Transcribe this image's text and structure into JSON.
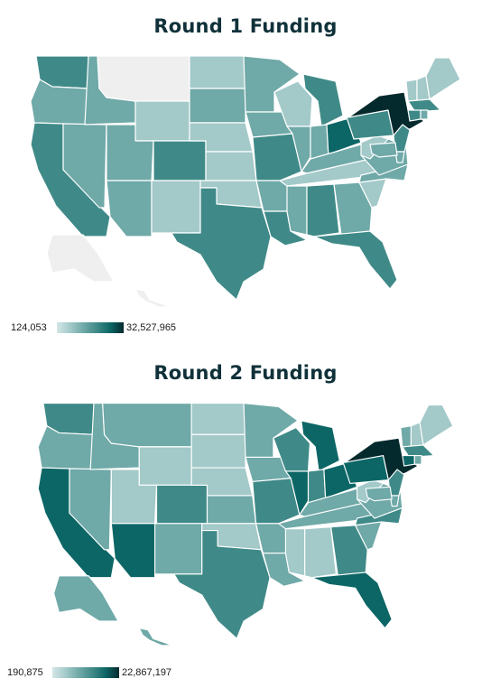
{
  "colors": {
    "scale": [
      "#d4e6e6",
      "#a3c9c9",
      "#6fa9a8",
      "#3f8a88",
      "#0d6666",
      "#052a2e"
    ],
    "no_data": "#efefef",
    "title": "#10313a"
  },
  "maps": [
    {
      "title": "Round 1 Funding",
      "legend": {
        "min": "124,053",
        "max": "32,527,965"
      },
      "levels": {
        "WA": 3,
        "OR": 2,
        "CA": 3,
        "NV": 2,
        "ID": 2,
        "MT": 0,
        "WY": 1,
        "UT": 2,
        "AZ": 2,
        "CO": 3,
        "NM": 1,
        "ND": 1,
        "SD": 2,
        "NE": 1,
        "KS": 1,
        "OK": 1,
        "TX": 3,
        "MN": 2,
        "IA": 2,
        "MO": 3,
        "AR": 2,
        "LA": 3,
        "WI": 1,
        "IL": 2,
        "MI": 3,
        "IN": 2,
        "OH": 4,
        "KY": 2,
        "TN": 1,
        "MS": 2,
        "AL": 3,
        "GA": 2,
        "FL": 3,
        "SC": 1,
        "NC": 2,
        "VA": 2,
        "WV": 1,
        "PA": 3,
        "NY": 5,
        "VT": 1,
        "NH": 1,
        "ME": 1,
        "MA": 3,
        "CT": 3,
        "RI": 2,
        "NJ": 3,
        "DE": 2,
        "MD": 2,
        "AK": 0,
        "HI": 0
      }
    },
    {
      "title": "Round 2 Funding",
      "legend": {
        "min": "190,875",
        "max": "22,867,197"
      },
      "levels": {
        "WA": 3,
        "OR": 2,
        "CA": 4,
        "NV": 2,
        "ID": 2,
        "MT": 2,
        "WY": 1,
        "UT": 1,
        "AZ": 4,
        "CO": 3,
        "NM": 2,
        "ND": 1,
        "SD": 1,
        "NE": 1,
        "KS": 2,
        "OK": 1,
        "TX": 3,
        "MN": 2,
        "IA": 2,
        "MO": 3,
        "AR": 2,
        "LA": 2,
        "WI": 3,
        "IL": 4,
        "MI": 4,
        "IN": 3,
        "OH": 4,
        "KY": 2,
        "TN": 2,
        "MS": 1,
        "AL": 1,
        "GA": 3,
        "FL": 4,
        "SC": 2,
        "NC": 3,
        "VA": 2,
        "WV": 1,
        "PA": 4,
        "NY": 5,
        "VT": 2,
        "NH": 1,
        "ME": 1,
        "MA": 3,
        "CT": 4,
        "RI": 2,
        "NJ": 3,
        "DE": 2,
        "MD": 2,
        "AK": 2,
        "HI": 2
      }
    }
  ]
}
